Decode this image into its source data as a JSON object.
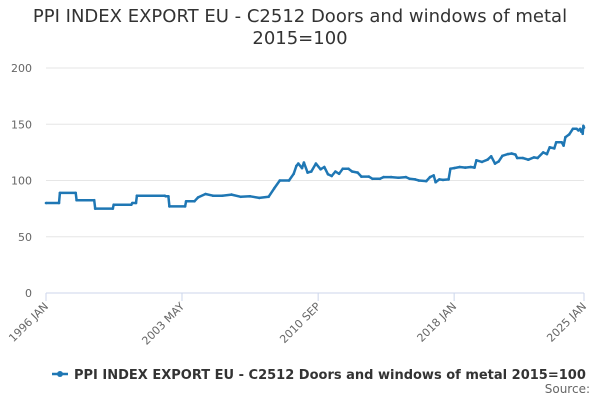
{
  "chart_data": {
    "type": "line",
    "title": "PPI INDEX EXPORT EU - C2512 Doors and windows of metal 2015=100",
    "xlabel": "",
    "ylabel": "",
    "ylim": [
      0,
      200
    ],
    "yticks": [
      0,
      50,
      100,
      150,
      200
    ],
    "xlim": [
      1996.0,
      2025.0
    ],
    "xticks": [
      {
        "value": 1996.0,
        "label": "1996 JAN"
      },
      {
        "value": 2003.33,
        "label": "2003 MAY"
      },
      {
        "value": 2010.67,
        "label": "2010 SEP"
      },
      {
        "value": 2018.0,
        "label": "2018 JAN"
      },
      {
        "value": 2025.0,
        "label": "2025 JAN"
      }
    ],
    "grid": true,
    "legend_position": "bottom",
    "colors": {
      "series": "#1f77b4",
      "grid": "#e6e6e6",
      "axis": "#ccd6eb",
      "text": "#333333",
      "tick": "#666666"
    },
    "series": [
      {
        "name": "PPI INDEX EXPORT EU - C2512 Doors and windows of metal 2015=100",
        "points": [
          [
            1996.0,
            80
          ],
          [
            1996.7,
            80
          ],
          [
            1996.75,
            89
          ],
          [
            1997.6,
            89
          ],
          [
            1997.65,
            82.5
          ],
          [
            1998.6,
            82.5
          ],
          [
            1998.65,
            75
          ],
          [
            1999.6,
            75
          ],
          [
            1999.65,
            78.5
          ],
          [
            2000.6,
            78.5
          ],
          [
            2000.65,
            80
          ],
          [
            2000.85,
            80
          ],
          [
            2000.9,
            86.5
          ],
          [
            2002.4,
            86.5
          ],
          [
            2002.45,
            86
          ],
          [
            2002.6,
            86
          ],
          [
            2002.65,
            77
          ],
          [
            2003.5,
            77
          ],
          [
            2003.55,
            81.5
          ],
          [
            2004.0,
            81.5
          ],
          [
            2004.2,
            85
          ],
          [
            2004.6,
            88
          ],
          [
            2005.0,
            86.5
          ],
          [
            2005.5,
            86.5
          ],
          [
            2006.0,
            87.5
          ],
          [
            2006.5,
            85.5
          ],
          [
            2007.0,
            86
          ],
          [
            2007.5,
            84.5
          ],
          [
            2008.0,
            85.5
          ],
          [
            2008.3,
            93
          ],
          [
            2008.6,
            100
          ],
          [
            2009.1,
            100
          ],
          [
            2009.35,
            106
          ],
          [
            2009.5,
            113
          ],
          [
            2009.6,
            115
          ],
          [
            2009.8,
            111
          ],
          [
            2009.9,
            116
          ],
          [
            2010.1,
            107
          ],
          [
            2010.3,
            108
          ],
          [
            2010.55,
            115
          ],
          [
            2010.8,
            110
          ],
          [
            2011.0,
            112
          ],
          [
            2011.2,
            105.5
          ],
          [
            2011.4,
            104
          ],
          [
            2011.6,
            108
          ],
          [
            2011.8,
            106
          ],
          [
            2012.0,
            110.5
          ],
          [
            2012.3,
            110.5
          ],
          [
            2012.5,
            108
          ],
          [
            2012.8,
            107
          ],
          [
            2013.0,
            103.5
          ],
          [
            2013.4,
            103.5
          ],
          [
            2013.6,
            101.5
          ],
          [
            2014.0,
            101.5
          ],
          [
            2014.2,
            103
          ],
          [
            2014.6,
            103
          ],
          [
            2015.0,
            102.5
          ],
          [
            2015.4,
            103
          ],
          [
            2015.6,
            101.5
          ],
          [
            2015.9,
            101
          ],
          [
            2016.1,
            100
          ],
          [
            2016.5,
            99.5
          ],
          [
            2016.7,
            103
          ],
          [
            2016.9,
            104.5
          ],
          [
            2017.0,
            98.5
          ],
          [
            2017.2,
            101
          ],
          [
            2017.4,
            100.5
          ],
          [
            2017.7,
            101
          ],
          [
            2017.8,
            110.5
          ],
          [
            2018.0,
            111
          ],
          [
            2018.3,
            112
          ],
          [
            2018.6,
            111.5
          ],
          [
            2018.9,
            112
          ],
          [
            2019.1,
            111.5
          ],
          [
            2019.2,
            118
          ],
          [
            2019.5,
            116.5
          ],
          [
            2019.8,
            118.5
          ],
          [
            2020.0,
            121.5
          ],
          [
            2020.2,
            115
          ],
          [
            2020.4,
            117
          ],
          [
            2020.6,
            122
          ],
          [
            2020.9,
            123.5
          ],
          [
            2021.1,
            124
          ],
          [
            2021.3,
            123
          ],
          [
            2021.4,
            120
          ],
          [
            2021.7,
            120
          ],
          [
            2022.0,
            118.5
          ],
          [
            2022.3,
            120.5
          ],
          [
            2022.5,
            120
          ],
          [
            2022.8,
            125
          ],
          [
            2023.0,
            123.5
          ],
          [
            2023.15,
            129.5
          ],
          [
            2023.4,
            128.5
          ],
          [
            2023.5,
            134
          ],
          [
            2023.8,
            134
          ],
          [
            2023.9,
            131
          ],
          [
            2024.0,
            138.5
          ],
          [
            2024.2,
            141
          ],
          [
            2024.4,
            146
          ],
          [
            2024.6,
            146
          ],
          [
            2024.7,
            144.5
          ],
          [
            2024.8,
            146
          ],
          [
            2024.85,
            143.5
          ],
          [
            2024.9,
            145
          ],
          [
            2024.93,
            141.5
          ],
          [
            2024.97,
            148.5
          ],
          [
            2025.0,
            147
          ]
        ]
      }
    ]
  },
  "source_label": "Source:"
}
